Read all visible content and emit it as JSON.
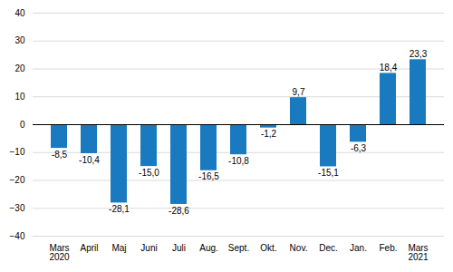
{
  "chart_data": {
    "type": "bar",
    "categories": [
      "Mars\n2020",
      "April",
      "Maj",
      "Juni",
      "Juli",
      "Aug.",
      "Sept.",
      "Okt.",
      "Nov.",
      "Dec.",
      "Jan.",
      "Feb.",
      "Mars\n2021"
    ],
    "values": [
      -8.5,
      -10.4,
      -28.1,
      -15.0,
      -28.6,
      -16.5,
      -10.8,
      -1.2,
      9.7,
      -15.1,
      -6.3,
      18.4,
      23.3
    ],
    "value_labels": [
      "-8,5",
      "-10,4",
      "-28,1",
      "-15,0",
      "-28,6",
      "-16,5",
      "-10,8",
      "-1,2",
      "9,7",
      "-15,1",
      "-6,3",
      "18,4",
      "23,3"
    ],
    "color": "#1a7abf",
    "ylim": [
      -40,
      40
    ],
    "yticks": [
      -40,
      -30,
      -20,
      -10,
      0,
      10,
      20,
      30,
      40
    ],
    "grid": true,
    "data_labels": true
  }
}
